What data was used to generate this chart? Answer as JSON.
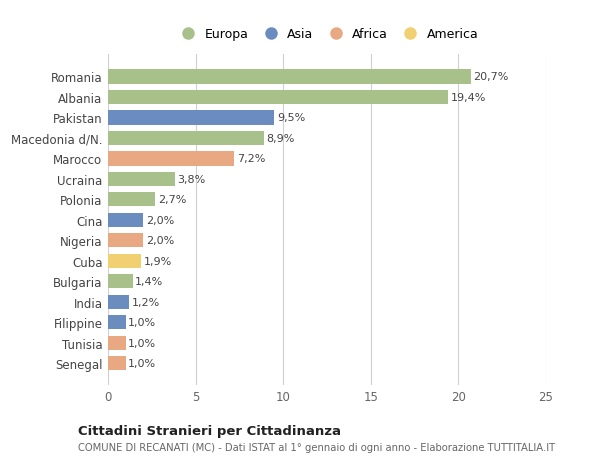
{
  "countries": [
    "Romania",
    "Albania",
    "Pakistan",
    "Macedonia d/N.",
    "Marocco",
    "Ucraina",
    "Polonia",
    "Cina",
    "Nigeria",
    "Cuba",
    "Bulgaria",
    "India",
    "Filippine",
    "Tunisia",
    "Senegal"
  ],
  "values": [
    20.7,
    19.4,
    9.5,
    8.9,
    7.2,
    3.8,
    2.7,
    2.0,
    2.0,
    1.9,
    1.4,
    1.2,
    1.0,
    1.0,
    1.0
  ],
  "labels": [
    "20,7%",
    "19,4%",
    "9,5%",
    "8,9%",
    "7,2%",
    "3,8%",
    "2,7%",
    "2,0%",
    "2,0%",
    "1,9%",
    "1,4%",
    "1,2%",
    "1,0%",
    "1,0%",
    "1,0%"
  ],
  "continents": [
    "Europa",
    "Europa",
    "Asia",
    "Europa",
    "Africa",
    "Europa",
    "Europa",
    "Asia",
    "Africa",
    "America",
    "Europa",
    "Asia",
    "Asia",
    "Africa",
    "Africa"
  ],
  "continent_colors": {
    "Europa": "#a8c08a",
    "Asia": "#6b8cbf",
    "Africa": "#e8a882",
    "America": "#f0d070"
  },
  "legend_order": [
    "Europa",
    "Asia",
    "Africa",
    "America"
  ],
  "title": "Cittadini Stranieri per Cittadinanza",
  "subtitle": "COMUNE DI RECANATI (MC) - Dati ISTAT al 1° gennaio di ogni anno - Elaborazione TUTTITALIA.IT",
  "xlim": [
    0,
    25
  ],
  "xticks": [
    0,
    5,
    10,
    15,
    20,
    25
  ],
  "bg_color": "#ffffff",
  "grid_color": "#d0d0d0",
  "bar_height": 0.7
}
